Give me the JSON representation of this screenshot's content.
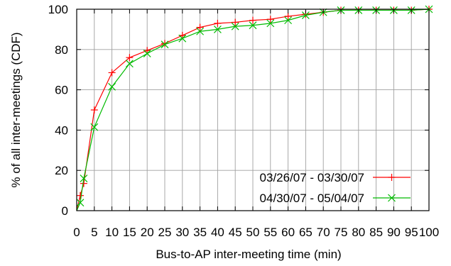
{
  "chart_data": {
    "type": "line",
    "xlabel": "Bus-to-AP inter-meeting time (min)",
    "ylabel": "% of all inter-meetings (CDF)",
    "xlim": [
      0,
      100
    ],
    "ylim": [
      0,
      100
    ],
    "x_ticks": [
      "0",
      "5",
      "10",
      "15",
      "20",
      "25",
      "30",
      "35",
      "40",
      "45",
      "50",
      "55",
      "60",
      "65",
      "70",
      "75",
      "80",
      "85",
      "90",
      "95",
      "100"
    ],
    "y_ticks": [
      "0",
      "20",
      "40",
      "60",
      "80",
      "100"
    ],
    "grid": true,
    "legend_position": "bottom-right",
    "series": [
      {
        "name": "03/26/07 - 03/30/07",
        "color": "#ff0000",
        "marker": "plus",
        "x": [
          0,
          1,
          2,
          5,
          10,
          15,
          20,
          25,
          30,
          35,
          40,
          45,
          50,
          55,
          60,
          65,
          70,
          75,
          80,
          85,
          90,
          95,
          100
        ],
        "y": [
          0,
          7.5,
          13.5,
          50,
          68.5,
          76,
          79.5,
          83,
          87,
          91,
          93,
          93.5,
          94.5,
          95,
          96.5,
          97.5,
          98.5,
          99.5,
          99.5,
          99.5,
          99.5,
          99.5,
          100
        ]
      },
      {
        "name": "04/30/07 - 05/04/07",
        "color": "#00bb00",
        "marker": "cross",
        "x": [
          0,
          1,
          2,
          5,
          10,
          15,
          20,
          25,
          30,
          35,
          40,
          45,
          50,
          55,
          60,
          65,
          70,
          75,
          80,
          85,
          90,
          95,
          100
        ],
        "y": [
          0,
          4,
          16,
          41.5,
          61.5,
          73,
          78,
          82.5,
          85.5,
          89,
          90,
          91.5,
          92,
          93,
          94.5,
          97,
          98.5,
          99.5,
          99.5,
          99.5,
          99.5,
          99.5,
          100
        ]
      }
    ]
  }
}
